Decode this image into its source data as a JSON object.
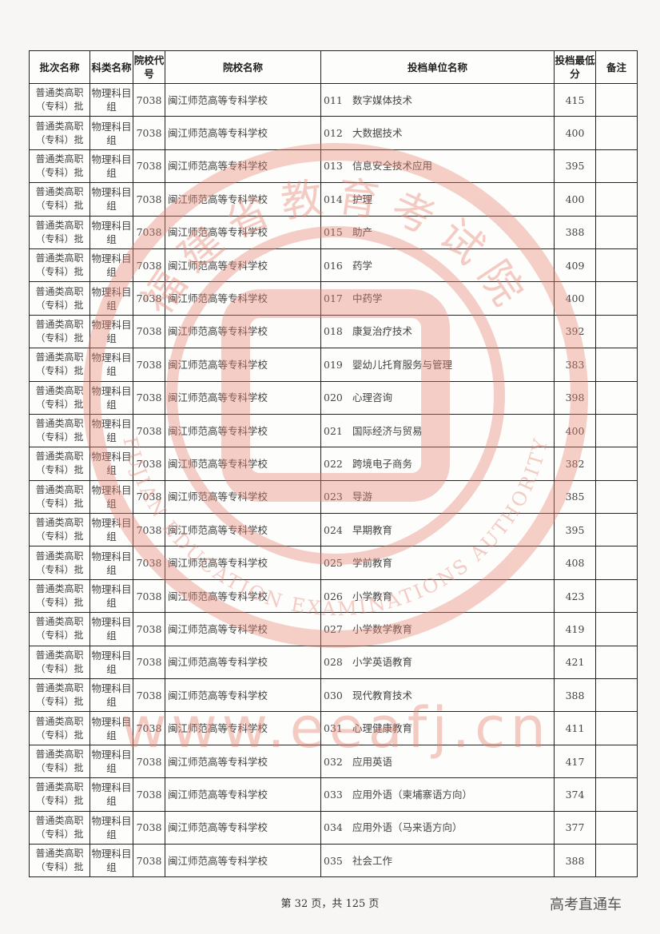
{
  "table": {
    "headers": [
      "批次名称",
      "科类名称",
      "院校代号",
      "院校名称",
      "投档单位名称",
      "投档最低分",
      "备注"
    ],
    "rows": [
      {
        "batch": "普通类高职（专科）批",
        "subject": "物理科目组",
        "code": "7038",
        "school": "闽江师范高等专科学校",
        "unit_code": "011",
        "unit_name": "数字媒体技术",
        "score": "415",
        "remark": ""
      },
      {
        "batch": "普通类高职（专科）批",
        "subject": "物理科目组",
        "code": "7038",
        "school": "闽江师范高等专科学校",
        "unit_code": "012",
        "unit_name": "大数据技术",
        "score": "400",
        "remark": ""
      },
      {
        "batch": "普通类高职（专科）批",
        "subject": "物理科目组",
        "code": "7038",
        "school": "闽江师范高等专科学校",
        "unit_code": "013",
        "unit_name": "信息安全技术应用",
        "score": "395",
        "remark": ""
      },
      {
        "batch": "普通类高职（专科）批",
        "subject": "物理科目组",
        "code": "7038",
        "school": "闽江师范高等专科学校",
        "unit_code": "014",
        "unit_name": "护理",
        "score": "400",
        "remark": ""
      },
      {
        "batch": "普通类高职（专科）批",
        "subject": "物理科目组",
        "code": "7038",
        "school": "闽江师范高等专科学校",
        "unit_code": "015",
        "unit_name": "助产",
        "score": "388",
        "remark": ""
      },
      {
        "batch": "普通类高职（专科）批",
        "subject": "物理科目组",
        "code": "7038",
        "school": "闽江师范高等专科学校",
        "unit_code": "016",
        "unit_name": "药学",
        "score": "409",
        "remark": ""
      },
      {
        "batch": "普通类高职（专科）批",
        "subject": "物理科目组",
        "code": "7038",
        "school": "闽江师范高等专科学校",
        "unit_code": "017",
        "unit_name": "中药学",
        "score": "400",
        "remark": ""
      },
      {
        "batch": "普通类高职（专科）批",
        "subject": "物理科目组",
        "code": "7038",
        "school": "闽江师范高等专科学校",
        "unit_code": "018",
        "unit_name": "康复治疗技术",
        "score": "392",
        "remark": ""
      },
      {
        "batch": "普通类高职（专科）批",
        "subject": "物理科目组",
        "code": "7038",
        "school": "闽江师范高等专科学校",
        "unit_code": "019",
        "unit_name": "婴幼儿托育服务与管理",
        "score": "383",
        "remark": ""
      },
      {
        "batch": "普通类高职（专科）批",
        "subject": "物理科目组",
        "code": "7038",
        "school": "闽江师范高等专科学校",
        "unit_code": "020",
        "unit_name": "心理咨询",
        "score": "398",
        "remark": ""
      },
      {
        "batch": "普通类高职（专科）批",
        "subject": "物理科目组",
        "code": "7038",
        "school": "闽江师范高等专科学校",
        "unit_code": "021",
        "unit_name": "国际经济与贸易",
        "score": "400",
        "remark": ""
      },
      {
        "batch": "普通类高职（专科）批",
        "subject": "物理科目组",
        "code": "7038",
        "school": "闽江师范高等专科学校",
        "unit_code": "022",
        "unit_name": "跨境电子商务",
        "score": "382",
        "remark": ""
      },
      {
        "batch": "普通类高职（专科）批",
        "subject": "物理科目组",
        "code": "7038",
        "school": "闽江师范高等专科学校",
        "unit_code": "023",
        "unit_name": "导游",
        "score": "385",
        "remark": ""
      },
      {
        "batch": "普通类高职（专科）批",
        "subject": "物理科目组",
        "code": "7038",
        "school": "闽江师范高等专科学校",
        "unit_code": "024",
        "unit_name": "早期教育",
        "score": "395",
        "remark": ""
      },
      {
        "batch": "普通类高职（专科）批",
        "subject": "物理科目组",
        "code": "7038",
        "school": "闽江师范高等专科学校",
        "unit_code": "025",
        "unit_name": "学前教育",
        "score": "408",
        "remark": ""
      },
      {
        "batch": "普通类高职（专科）批",
        "subject": "物理科目组",
        "code": "7038",
        "school": "闽江师范高等专科学校",
        "unit_code": "026",
        "unit_name": "小学教育",
        "score": "423",
        "remark": ""
      },
      {
        "batch": "普通类高职（专科）批",
        "subject": "物理科目组",
        "code": "7038",
        "school": "闽江师范高等专科学校",
        "unit_code": "027",
        "unit_name": "小学数学教育",
        "score": "419",
        "remark": ""
      },
      {
        "batch": "普通类高职（专科）批",
        "subject": "物理科目组",
        "code": "7038",
        "school": "闽江师范高等专科学校",
        "unit_code": "028",
        "unit_name": "小学英语教育",
        "score": "421",
        "remark": ""
      },
      {
        "batch": "普通类高职（专科）批",
        "subject": "物理科目组",
        "code": "7038",
        "school": "闽江师范高等专科学校",
        "unit_code": "030",
        "unit_name": "现代教育技术",
        "score": "388",
        "remark": ""
      },
      {
        "batch": "普通类高职（专科）批",
        "subject": "物理科目组",
        "code": "7038",
        "school": "闽江师范高等专科学校",
        "unit_code": "031",
        "unit_name": "心理健康教育",
        "score": "411",
        "remark": ""
      },
      {
        "batch": "普通类高职（专科）批",
        "subject": "物理科目组",
        "code": "7038",
        "school": "闽江师范高等专科学校",
        "unit_code": "032",
        "unit_name": "应用英语",
        "score": "417",
        "remark": ""
      },
      {
        "batch": "普通类高职（专科）批",
        "subject": "物理科目组",
        "code": "7038",
        "school": "闽江师范高等专科学校",
        "unit_code": "033",
        "unit_name": "应用外语（柬埔寨语方向）",
        "score": "374",
        "remark": ""
      },
      {
        "batch": "普通类高职（专科）批",
        "subject": "物理科目组",
        "code": "7038",
        "school": "闽江师范高等专科学校",
        "unit_code": "034",
        "unit_name": "应用外语（马来语方向）",
        "score": "377",
        "remark": ""
      },
      {
        "batch": "普通类高职（专科）批",
        "subject": "物理科目组",
        "code": "7038",
        "school": "闽江师范高等专科学校",
        "unit_code": "035",
        "unit_name": "社会工作",
        "score": "388",
        "remark": ""
      }
    ]
  },
  "footer": {
    "page_text": "第 32 页，共 125 页"
  },
  "brand": "高考直通车",
  "watermark": {
    "seal_cn": "福建省教育考试院",
    "seal_en": "FUJIAN EDUCATION EXAMINATIONS AUTHORITY",
    "url": "www.eeafj.cn",
    "color": "#e8836f"
  }
}
